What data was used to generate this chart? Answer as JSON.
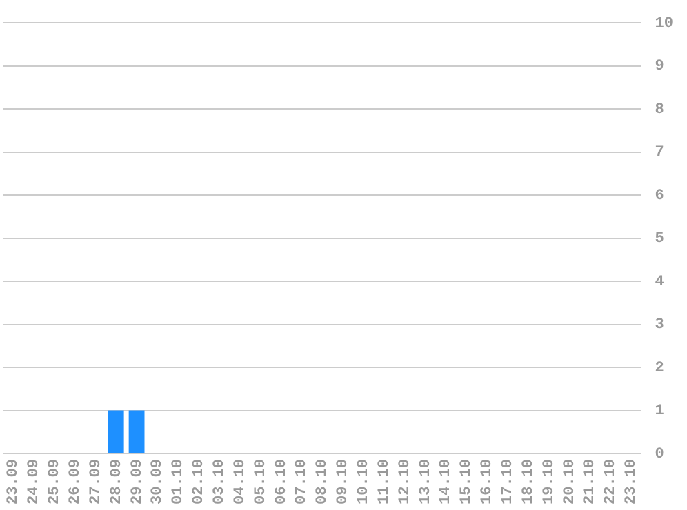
{
  "chart_data": {
    "type": "bar",
    "categories": [
      "23.09",
      "24.09",
      "25.09",
      "26.09",
      "27.09",
      "28.09",
      "29.09",
      "30.09",
      "01.10",
      "02.10",
      "03.10",
      "04.10",
      "05.10",
      "06.10",
      "07.10",
      "08.10",
      "09.10",
      "10.10",
      "11.10",
      "12.10",
      "13.10",
      "14.10",
      "15.10",
      "16.10",
      "17.10",
      "18.10",
      "19.10",
      "20.10",
      "21.10",
      "22.10",
      "23.10"
    ],
    "values": [
      0,
      0,
      0,
      0,
      0,
      1,
      1,
      0,
      0,
      0,
      0,
      0,
      0,
      0,
      0,
      0,
      0,
      0,
      0,
      0,
      0,
      0,
      0,
      0,
      0,
      0,
      0,
      0,
      0,
      0,
      0
    ],
    "color": "#1e90ff",
    "ylim": [
      0,
      10
    ],
    "yticks": [
      0,
      1,
      2,
      3,
      4,
      5,
      6,
      7,
      8,
      9,
      10
    ],
    "grid": "y"
  }
}
